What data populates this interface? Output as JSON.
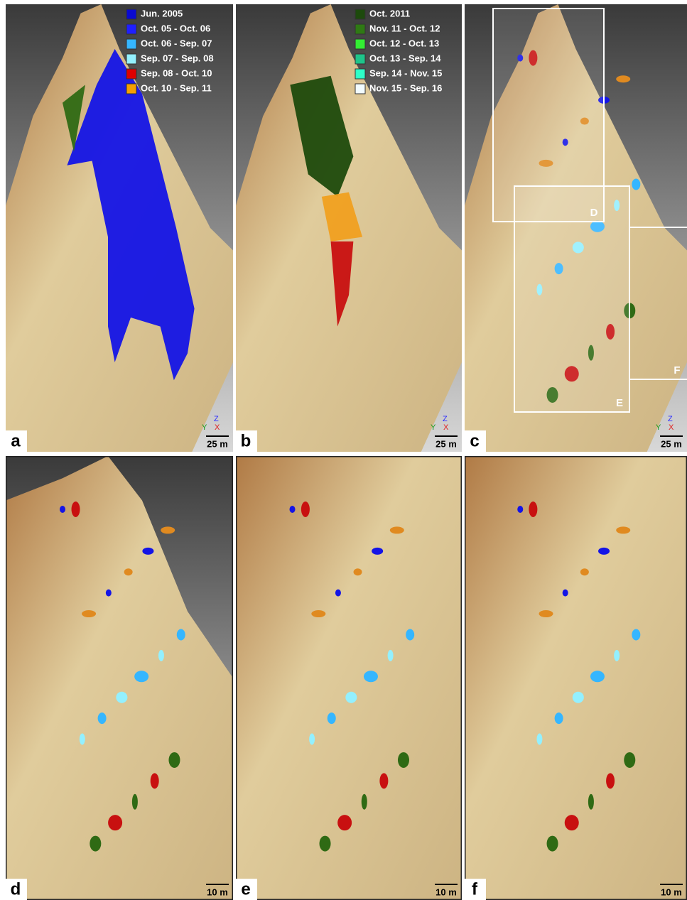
{
  "panels": [
    {
      "label": "a",
      "scale": "25 m",
      "axes": {
        "z": "Z",
        "y": "Y",
        "x": "X"
      },
      "legend": [
        {
          "name": "Jun. 2005",
          "color": "#0a0ad2"
        },
        {
          "name": "Oct. 05 - Oct. 06",
          "color": "#1f1fff"
        },
        {
          "name": "Oct. 06 - Sep. 07",
          "color": "#35b6ff"
        },
        {
          "name": "Sep. 07 - Sep. 08",
          "color": "#93f0ff"
        },
        {
          "name": "Sep. 08 - Oct. 10",
          "color": "#e00000"
        },
        {
          "name": "Oct. 10 - Sep. 11",
          "color": "#f5a000"
        }
      ]
    },
    {
      "label": "b",
      "scale": "25 m",
      "axes": {
        "z": "Z",
        "y": "Y",
        "x": "X"
      },
      "legend": [
        {
          "name": "Oct. 2011",
          "color": "#1d4a0c"
        },
        {
          "name": "Nov. 11 - Oct. 12",
          "color": "#2f7a14"
        },
        {
          "name": "Oct. 12 - Oct. 13",
          "color": "#33ee33"
        },
        {
          "name": "Oct. 13 - Sep. 14",
          "color": "#1ec48a"
        },
        {
          "name": "Sep. 14 - Nov. 15",
          "color": "#2effc8"
        },
        {
          "name": "Nov. 15 - Sep. 16",
          "color": "#f2fcff"
        }
      ]
    },
    {
      "label": "c",
      "scale": "25 m",
      "axes": {
        "z": "Z",
        "y": "Y",
        "x": "X"
      },
      "boxes": [
        "D",
        "E",
        "F"
      ]
    },
    {
      "label": "d",
      "scale": "10 m"
    },
    {
      "label": "e",
      "scale": "10 m"
    },
    {
      "label": "f",
      "scale": "10 m"
    }
  ]
}
